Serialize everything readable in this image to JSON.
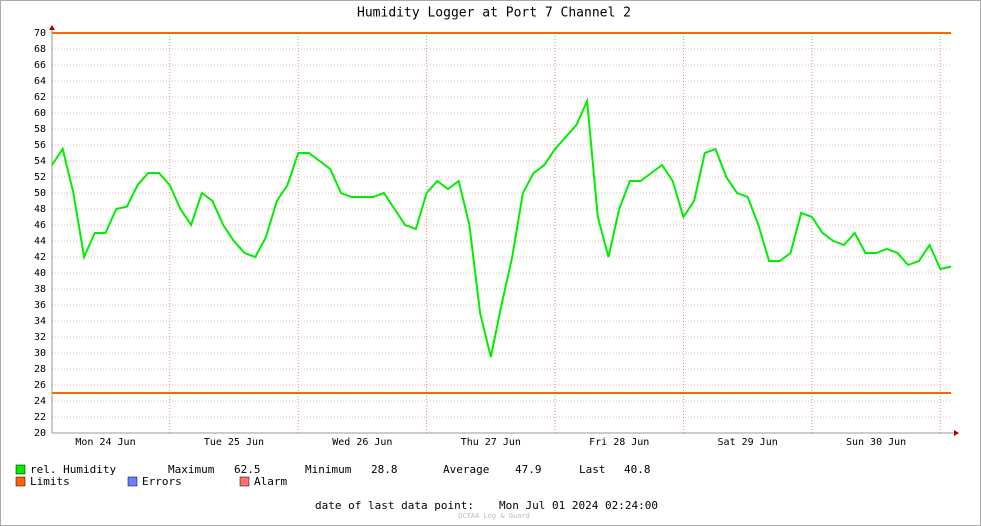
{
  "chart_data": {
    "type": "line",
    "title": "Humidity Logger at Port 7 Channel 2",
    "categories": [
      null,
      null,
      null,
      null,
      null,
      "Mon 24 Jun",
      null,
      null,
      null,
      null,
      null,
      null,
      null,
      null,
      null,
      null,
      null,
      "Tue 25 Jun",
      null,
      null,
      null,
      null,
      null,
      null,
      null,
      null,
      null,
      null,
      null,
      "Wed 26 Jun",
      null,
      null,
      null,
      null,
      null,
      null,
      null,
      null,
      null,
      null,
      null,
      "Thu 27 Jun",
      null,
      null,
      null,
      null,
      null,
      null,
      null,
      null,
      null,
      null,
      null,
      "Fri 28 Jun",
      null,
      null,
      null,
      null,
      null,
      null,
      null,
      null,
      null,
      null,
      null,
      "Sat 29 Jun",
      null,
      null,
      null,
      null,
      null,
      null,
      null,
      null,
      null,
      null,
      null,
      "Sun 30 Jun",
      null,
      null,
      null,
      null,
      null,
      null,
      null
    ],
    "series": [
      {
        "name": "rel. Humidity",
        "color": "#00ee00",
        "values": [
          53.5,
          55.5,
          50,
          42,
          45,
          45,
          48,
          48.3,
          51,
          52.5,
          52.5,
          51,
          48,
          46,
          50,
          49,
          46,
          44,
          42.5,
          42,
          44.5,
          49,
          51,
          55,
          55,
          54,
          53,
          50,
          49.5,
          49.5,
          49.5,
          50,
          48,
          46,
          45.5,
          50,
          51.5,
          50.5,
          51.5,
          46,
          35,
          29.5,
          36,
          42,
          50,
          52.5,
          53.5,
          55.5,
          57,
          58.5,
          61.5,
          47,
          42,
          48,
          51.5,
          51.5,
          52.5,
          53.5,
          51.5,
          47,
          49,
          55,
          55.5,
          52,
          50,
          49.5,
          46,
          41.5,
          41.5,
          42.5,
          47.5,
          47,
          45,
          44,
          43.5,
          45,
          42.5,
          42.5,
          43,
          42.5,
          41,
          41.5,
          43.5,
          40.5,
          40.8
        ]
      }
    ],
    "limits": {
      "name": "Limits",
      "color": "#ff6600",
      "values": [
        70,
        25
      ]
    },
    "legend_extra": [
      {
        "name": "Errors",
        "color": "#6a7fff"
      },
      {
        "name": "Alarm",
        "color": "#ff7070"
      }
    ],
    "stats": [
      {
        "label": "Maximum",
        "value": 62.5
      },
      {
        "label": "Minimum",
        "value": 28.8
      },
      {
        "label": "Average",
        "value": 47.9
      },
      {
        "label": "Last",
        "value": 40.8
      }
    ],
    "footer_label": "date of last data point:",
    "footer_value": "Mon Jul 01 2024 02:24:00",
    "watermark": "OCTA4 Log & Guard",
    "ylim": [
      20,
      70
    ],
    "yticks": [
      20,
      22,
      24,
      26,
      28,
      30,
      32,
      34,
      36,
      38,
      40,
      42,
      44,
      46,
      48,
      50,
      52,
      54,
      56,
      58,
      60,
      62,
      64,
      66,
      68,
      70
    ],
    "grid": true
  }
}
